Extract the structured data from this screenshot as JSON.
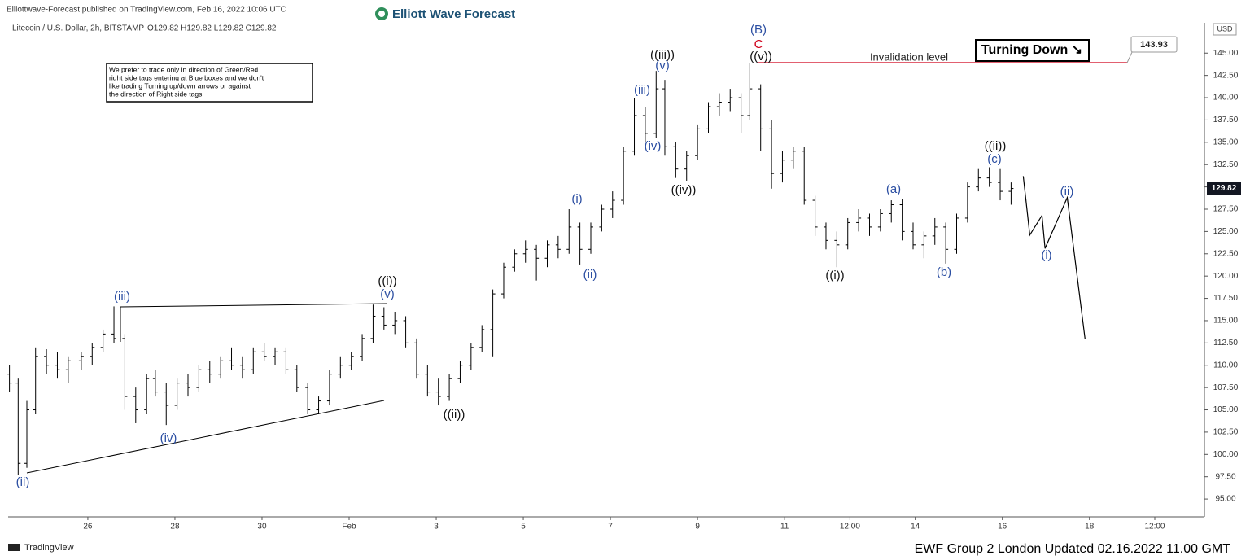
{
  "chart_data": {
    "type": "ohlc",
    "header": "Elliottwave-Forecast published on TradingView.com, Feb 16, 2022 10:06 UTC",
    "symbol": "Litecoin / U.S. Dollar, 2h, BITSTAMP",
    "ohlc_legend": "O129.82 H129.82 L129.82 C129.82",
    "brand": "Elliott Wave Forecast",
    "currency": "USD",
    "note": [
      "We prefer to trade only in direction of Green/Red",
      "right side tags entering at Blue boxes and we don't",
      "like trading Turning up/down arrows or against",
      "the direction of Right side tags"
    ],
    "signal": "Turning Down ↘",
    "invalidation_label": "Invalidation level",
    "invalidation_level": 143.93,
    "last_price": 129.82,
    "footer": "EWF Group 2 London  Updated 02.16.2022 11.00 GMT",
    "platform": "TradingView",
    "color": "#000000",
    "xlim": [
      24.17,
      51.64
    ],
    "xticks": [
      26,
      28,
      30,
      {
        "value": 32,
        "label": "Feb"
      },
      {
        "value": 34,
        "label": "3"
      },
      {
        "value": 36,
        "label": "5"
      },
      {
        "value": 38,
        "label": "7"
      },
      {
        "value": 40,
        "label": "9"
      },
      {
        "value": 42,
        "label": "11"
      },
      {
        "value": 43.5,
        "label": "12:00"
      },
      {
        "value": 45,
        "label": "14"
      },
      {
        "value": 47,
        "label": "16"
      },
      {
        "value": 49,
        "label": "18"
      },
      {
        "value": 50.5,
        "label": "12:00"
      }
    ],
    "ylim": [
      93.0,
      148.4
    ],
    "yticks": [
      {
        "value": 95,
        "label": "95.00"
      },
      {
        "value": 97.5,
        "label": "97.50"
      },
      {
        "value": 100,
        "label": "100.00"
      },
      {
        "value": 102.5,
        "label": "102.50"
      },
      {
        "value": 105,
        "label": "105.00"
      },
      {
        "value": 107.5,
        "label": "107.50"
      },
      {
        "value": 110,
        "label": "110.00"
      },
      {
        "value": 112.5,
        "label": "112.50"
      },
      {
        "value": 115,
        "label": "115.00"
      },
      {
        "value": 117.5,
        "label": "117.50"
      },
      {
        "value": 120,
        "label": "120.00"
      },
      {
        "value": 122.5,
        "label": "122.50"
      },
      {
        "value": 125,
        "label": "125.00"
      },
      {
        "value": 127.5,
        "label": "127.50"
      },
      {
        "value": 130,
        "label": "130.00"
      },
      {
        "value": 132.5,
        "label": "132.50"
      },
      {
        "value": 135,
        "label": "135.00"
      },
      {
        "value": 137.5,
        "label": "137.50"
      },
      {
        "value": 140,
        "label": "140.00"
      },
      {
        "value": 142.5,
        "label": "142.50"
      },
      {
        "value": 145,
        "label": "145.00"
      }
    ],
    "x": [
      24.2,
      24.4,
      24.6,
      24.8,
      25.05,
      25.3,
      25.55,
      25.85,
      26.1,
      26.35,
      26.6,
      26.85,
      27.1,
      27.35,
      27.55,
      27.8,
      28.05,
      28.3,
      28.55,
      28.8,
      29.05,
      29.3,
      29.55,
      29.8,
      30.05,
      30.3,
      30.55,
      30.8,
      31.05,
      31.3,
      31.55,
      31.8,
      32.05,
      32.3,
      32.55,
      32.8,
      33.05,
      33.3,
      33.55,
      33.8,
      34.05,
      34.3,
      34.55,
      34.8,
      35.05,
      35.3,
      35.55,
      35.8,
      36.05,
      36.3,
      36.55,
      36.8,
      37.05,
      37.3,
      37.55,
      37.8,
      38.05,
      38.3,
      38.55,
      38.8,
      39.05,
      39.25,
      39.5,
      39.75,
      40.0,
      40.25,
      40.5,
      40.75,
      41.0,
      41.2,
      41.45,
      41.7,
      41.95,
      42.2,
      42.45,
      42.7,
      42.95,
      43.2,
      43.45,
      43.7,
      43.95,
      44.2,
      44.45,
      44.7,
      44.95,
      45.2,
      45.45,
      45.7,
      45.95,
      46.2,
      46.45,
      46.7,
      46.95,
      47.2
    ],
    "open": [
      109,
      108,
      99,
      105,
      111,
      110,
      109.5,
      110.5,
      111,
      112,
      113.5,
      113,
      106.5,
      105,
      108.5,
      107,
      105.5,
      108,
      107.5,
      109.5,
      109,
      110.5,
      110,
      109.5,
      111.5,
      111,
      111.5,
      109.5,
      107.5,
      105,
      106,
      109,
      110,
      111,
      113,
      115.5,
      114.5,
      115,
      112.5,
      109,
      107,
      106.5,
      108.5,
      110,
      112,
      114,
      118,
      121,
      122.5,
      123,
      122,
      123.5,
      123,
      125.5,
      123,
      125.5,
      127.5,
      128.5,
      134,
      138,
      136,
      141,
      134.5,
      132,
      133.5,
      136.5,
      139,
      139.5,
      140,
      138,
      141,
      136.5,
      131.5,
      133,
      134,
      128.5,
      125.5,
      124,
      123.5,
      126,
      126.5,
      125.5,
      127,
      128,
      125,
      123.5,
      124.5,
      125.5,
      123,
      126.5,
      130,
      131,
      130.5,
      129.5
    ],
    "high": [
      110,
      108.5,
      106,
      112,
      111.8,
      111.5,
      111,
      111.5,
      112.5,
      114,
      116.6,
      113.5,
      107.5,
      109,
      109.5,
      108,
      108.5,
      109,
      110,
      110.5,
      111,
      112,
      111,
      112,
      112.5,
      112,
      112,
      110,
      108,
      106.5,
      109.5,
      111,
      111.5,
      113.5,
      116.8,
      116.5,
      116,
      115.5,
      113,
      110,
      108.5,
      109,
      110.5,
      112.5,
      114.5,
      118.5,
      121.5,
      123,
      124,
      123.5,
      124,
      124.5,
      127.5,
      126,
      126,
      128,
      129.5,
      134.5,
      140,
      139,
      143,
      142,
      135,
      134,
      137,
      139.5,
      140.5,
      141,
      140.5,
      143.9,
      141.5,
      137.5,
      134,
      134.5,
      134.5,
      129,
      126,
      125,
      126.5,
      127.5,
      127,
      127.5,
      128.5,
      128.6,
      126,
      125,
      126.5,
      126,
      127,
      130.5,
      132,
      132.2,
      132,
      130.5
    ],
    "low": [
      107,
      97.7,
      98.5,
      104.5,
      109,
      108.5,
      108,
      109.5,
      110,
      111.5,
      112.5,
      105,
      103.5,
      104.5,
      106.5,
      103.3,
      105,
      106.5,
      107,
      108,
      108.5,
      109.5,
      108.5,
      109,
      110.5,
      110,
      109,
      107,
      104.5,
      104.5,
      105.5,
      108.5,
      109.5,
      110.5,
      112.5,
      114,
      113.5,
      112,
      108.5,
      106.5,
      105.5,
      106,
      108,
      109.5,
      111.5,
      111,
      117.5,
      120.5,
      121.5,
      119.5,
      121,
      122,
      122.5,
      121.3,
      122.5,
      125,
      126.5,
      128,
      133.5,
      135,
      135.5,
      133.5,
      131,
      130.7,
      133,
      136,
      138,
      138.5,
      136,
      137.5,
      134,
      129.8,
      130.5,
      132,
      128,
      124.5,
      123,
      121,
      123,
      125,
      124.5,
      125,
      126,
      124,
      123,
      122,
      123.5,
      121.4,
      122.5,
      126,
      129.5,
      130,
      128.5,
      128
    ],
    "close": [
      108,
      99,
      105,
      111,
      110,
      109.5,
      110.5,
      111,
      112,
      113.5,
      113,
      106.5,
      105,
      108.5,
      107,
      105.5,
      108,
      107.5,
      109.5,
      109,
      110.5,
      110,
      109.5,
      111.5,
      111,
      111.5,
      109.5,
      107.5,
      105,
      106,
      109,
      110,
      111,
      113,
      115.5,
      114.5,
      115,
      112.5,
      109,
      107,
      106.5,
      108.5,
      110,
      112,
      114,
      118,
      121,
      122.5,
      123,
      122,
      123.5,
      123,
      125.5,
      123,
      125.5,
      127.5,
      128.5,
      134,
      138,
      136,
      141,
      134.5,
      132,
      133.5,
      136.5,
      139,
      139.5,
      140,
      138,
      141,
      136.5,
      131.5,
      133,
      134,
      128.5,
      125.5,
      124,
      123.5,
      126,
      126.5,
      125.5,
      127,
      128,
      125,
      123.5,
      124.5,
      125.5,
      123,
      126.5,
      130,
      131,
      130.5,
      129.5,
      129.82
    ],
    "projection": {
      "x": [
        47.48,
        47.63,
        47.91,
        47.98,
        48.49,
        48.9
      ],
      "values": [
        131.2,
        124.6,
        126.8,
        123.1,
        128.8,
        112.9
      ]
    },
    "wave_labels": [
      {
        "text": "(ii)",
        "color": "#2b4ea2"
      },
      {
        "text": "(iii)",
        "color": "#2b4ea2"
      },
      {
        "text": "(iv)",
        "color": "#2b4ea2"
      },
      {
        "text": "((i))",
        "color": "#111111"
      },
      {
        "text": "(v)",
        "color": "#2b4ea2"
      },
      {
        "text": "((ii))",
        "color": "#111111"
      },
      {
        "text": "(i)",
        "color": "#2b4ea2"
      },
      {
        "text": "(ii)",
        "color": "#2b4ea2"
      },
      {
        "text": "(iii)",
        "color": "#2b4ea2"
      },
      {
        "text": "(iv)",
        "color": "#2b4ea2"
      },
      {
        "text": "((iii))",
        "color": "#111111"
      },
      {
        "text": "(v)",
        "color": "#2b4ea2"
      },
      {
        "text": "((iv))",
        "color": "#111111"
      },
      {
        "text": "(B)",
        "color": "#2b4ea2"
      },
      {
        "text": "C",
        "color": "#d0021b"
      },
      {
        "text": "((v))",
        "color": "#111111"
      },
      {
        "text": "((i))",
        "color": "#111111"
      },
      {
        "text": "(a)",
        "color": "#2b4ea2"
      },
      {
        "text": "(b)",
        "color": "#2b4ea2"
      },
      {
        "text": "((ii))",
        "color": "#111111"
      },
      {
        "text": "(c)",
        "color": "#2b4ea2"
      },
      {
        "text": "(ii)",
        "color": "#2b4ea2"
      },
      {
        "text": "(i)",
        "color": "#2b4ea2"
      }
    ]
  }
}
